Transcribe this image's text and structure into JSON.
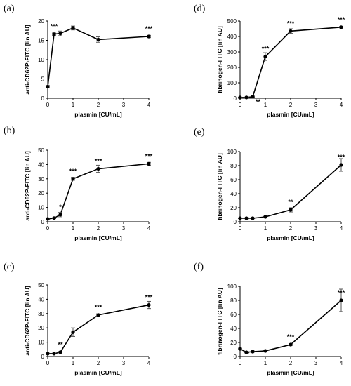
{
  "chart_data": [
    {
      "type": "line",
      "panel": "(a)",
      "xlabel": "plasmin [CU/mL]",
      "ylabel": "anti-CD62P-FITC [lin AU]",
      "xlim": [
        0,
        4
      ],
      "ylim": [
        0,
        20
      ],
      "xticks": [
        0,
        1,
        2,
        3,
        4
      ],
      "yticks": [
        0,
        5,
        10,
        15,
        20
      ],
      "grid": false,
      "x": [
        0,
        0.25,
        0.5,
        1,
        2,
        4
      ],
      "y": [
        3,
        16.6,
        16.8,
        18.2,
        15.2,
        16
      ],
      "err": [
        0.3,
        0.3,
        0.6,
        0.5,
        0.7,
        0.3
      ],
      "annotations": [
        {
          "x": 0.25,
          "y": 16.6,
          "text": "***",
          "pos": "above"
        },
        {
          "x": 4,
          "y": 16,
          "text": "***",
          "pos": "above"
        }
      ]
    },
    {
      "type": "line",
      "panel": "(b)",
      "xlabel": "plasmin [CU/mL]",
      "ylabel": "anti-CD62P-FITC [lin AU]",
      "xlim": [
        0,
        4
      ],
      "ylim": [
        0,
        50
      ],
      "xticks": [
        0,
        1,
        2,
        3,
        4
      ],
      "yticks": [
        0,
        10,
        20,
        30,
        40,
        50
      ],
      "grid": false,
      "x": [
        0,
        0.25,
        0.5,
        1,
        2,
        4
      ],
      "y": [
        2,
        2.5,
        5,
        30,
        37,
        40.5
      ],
      "err": [
        0.3,
        0.3,
        1.5,
        1,
        2.5,
        1
      ],
      "annotations": [
        {
          "x": 0.5,
          "y": 5,
          "text": "*",
          "pos": "above"
        },
        {
          "x": 1,
          "y": 30,
          "text": "***",
          "pos": "above"
        },
        {
          "x": 2,
          "y": 37,
          "text": "***",
          "pos": "above"
        },
        {
          "x": 4,
          "y": 40.5,
          "text": "***",
          "pos": "above"
        }
      ]
    },
    {
      "type": "line",
      "panel": "(c)",
      "xlabel": "plasmin [CU/mL]",
      "ylabel": "anti-CD62P-FITC [lin AU]",
      "xlim": [
        0,
        4
      ],
      "ylim": [
        0,
        50
      ],
      "xticks": [
        0,
        1,
        2,
        3,
        4
      ],
      "yticks": [
        0,
        10,
        20,
        30,
        40,
        50
      ],
      "grid": false,
      "x": [
        0,
        0.25,
        0.5,
        1,
        2,
        4
      ],
      "y": [
        2,
        2,
        3,
        17,
        29,
        36
      ],
      "err": [
        0.3,
        0.3,
        0.5,
        3,
        0.8,
        2.5
      ],
      "annotations": [
        {
          "x": 0.5,
          "y": 3,
          "text": "**",
          "pos": "above"
        },
        {
          "x": 2,
          "y": 29,
          "text": "***",
          "pos": "above"
        },
        {
          "x": 4,
          "y": 36,
          "text": "***",
          "pos": "above"
        }
      ]
    },
    {
      "type": "line",
      "panel": "(d)",
      "xlabel": "plasmin [CU/mL]",
      "ylabel": "fibrinogen-FITC [lin AU]",
      "xlim": [
        0,
        4
      ],
      "ylim": [
        0,
        500
      ],
      "xticks": [
        0,
        1,
        2,
        3,
        4
      ],
      "yticks": [
        0,
        100,
        200,
        300,
        400,
        500
      ],
      "grid": false,
      "x": [
        0,
        0.25,
        0.5,
        1,
        2,
        4
      ],
      "y": [
        5,
        5,
        10,
        270,
        435,
        460
      ],
      "err": [
        2,
        2,
        4,
        25,
        15,
        5
      ],
      "annotations": [
        {
          "x": 0.5,
          "y": 10,
          "text": "**",
          "pos": "right"
        },
        {
          "x": 1,
          "y": 270,
          "text": "***",
          "pos": "above"
        },
        {
          "x": 2,
          "y": 435,
          "text": "***",
          "pos": "above"
        },
        {
          "x": 4,
          "y": 460,
          "text": "***",
          "pos": "above"
        }
      ]
    },
    {
      "type": "line",
      "panel": "(e)",
      "xlabel": "plasmin [CU/mL]",
      "ylabel": "fibrinogen-FITC [lin AU]",
      "xlim": [
        0,
        4
      ],
      "ylim": [
        0,
        100
      ],
      "xticks": [
        0,
        1,
        2,
        3,
        4
      ],
      "yticks": [
        0,
        20,
        40,
        60,
        80,
        100
      ],
      "grid": false,
      "x": [
        0,
        0.25,
        0.5,
        1,
        2,
        4
      ],
      "y": [
        5,
        5,
        5,
        7,
        17,
        81
      ],
      "err": [
        0.5,
        0.5,
        0.5,
        0.8,
        3,
        9
      ],
      "annotations": [
        {
          "x": 2,
          "y": 17,
          "text": "**",
          "pos": "above"
        },
        {
          "x": 4,
          "y": 81,
          "text": "***",
          "pos": "above"
        }
      ]
    },
    {
      "type": "line",
      "panel": "(f)",
      "xlabel": "plasmin [CU/mL]",
      "ylabel": "fibrinogen-FITC [lin AU]",
      "xlim": [
        0,
        4
      ],
      "ylim": [
        0,
        100
      ],
      "xticks": [
        0,
        1,
        2,
        3,
        4
      ],
      "yticks": [
        0,
        20,
        40,
        60,
        80,
        100
      ],
      "grid": false,
      "x": [
        0,
        0.25,
        0.5,
        1,
        2,
        4
      ],
      "y": [
        11,
        6,
        7,
        8,
        17,
        80
      ],
      "err": [
        1,
        0.8,
        0.8,
        0.8,
        1.2,
        16
      ],
      "annotations": [
        {
          "x": 2,
          "y": 17,
          "text": "***",
          "pos": "above"
        },
        {
          "x": 4,
          "y": 80,
          "text": "***",
          "pos": "above"
        }
      ]
    }
  ],
  "colors": {
    "line": "#000000",
    "marker": "#000000",
    "errorbar": "#555555"
  }
}
